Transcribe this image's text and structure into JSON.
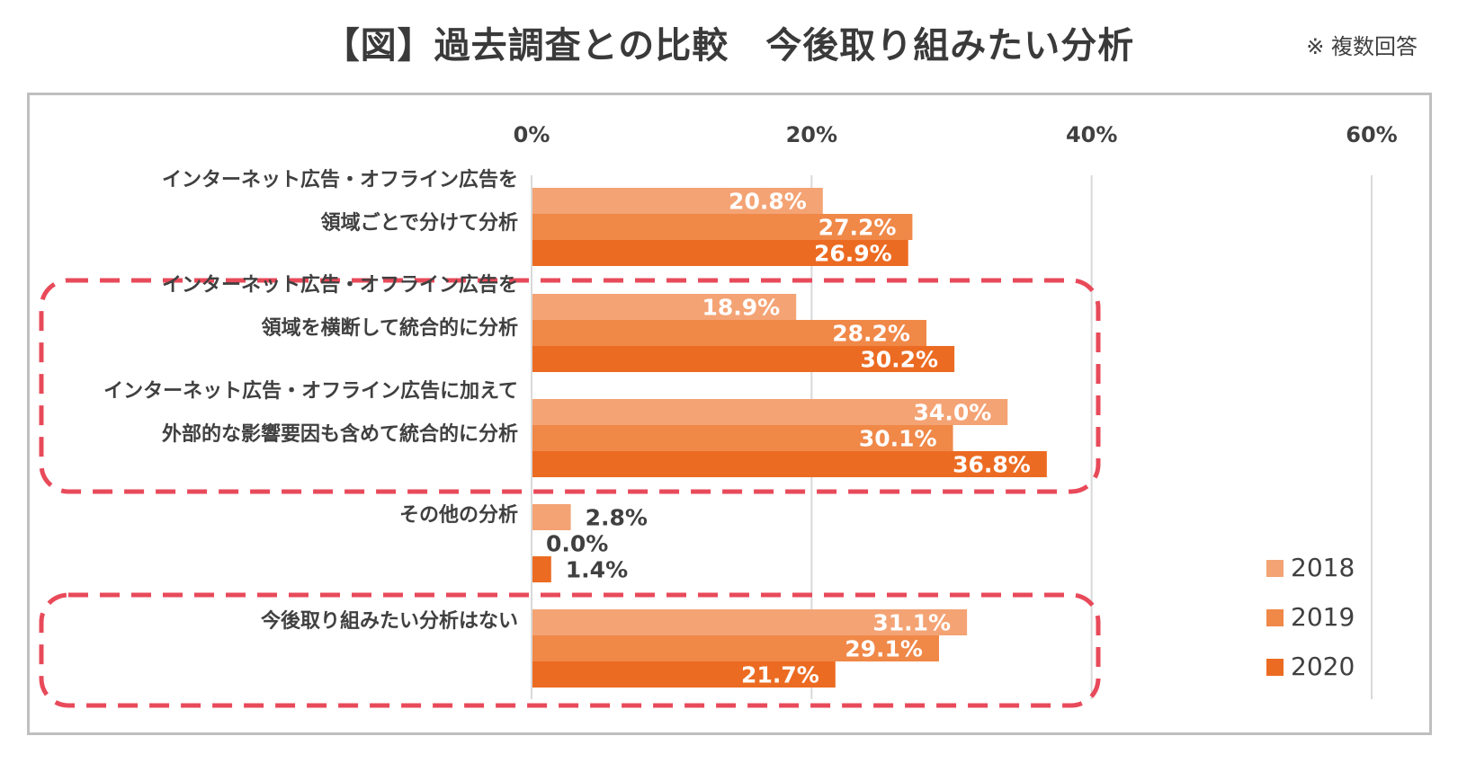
{
  "header": {
    "title": "【図】過去調査との比較　今後取り組みたい分析",
    "note": "※ 複数回答"
  },
  "chart_data": {
    "type": "bar",
    "orientation": "horizontal",
    "title": "【図】過去調査との比較　今後取り組みたい分析",
    "categories": [
      [
        "インターネット広告・オフライン広告を",
        "領域ごとで分けて分析"
      ],
      [
        "インターネット広告・オフライン広告を",
        "領域を横断して統合的に分析"
      ],
      [
        "インターネット広告・オフライン広告に加えて",
        "外部的な影響要因も含めて統合的に分析"
      ],
      [
        "その他の分析"
      ],
      [
        "今後取り組みたい分析はない"
      ]
    ],
    "series": [
      {
        "name": "2018",
        "values": [
          20.8,
          18.9,
          34.0,
          2.8,
          31.1
        ],
        "labels": [
          "20.8%",
          "18.9%",
          "34.0%",
          "2.8%",
          "31.1%"
        ]
      },
      {
        "name": "2019",
        "values": [
          27.2,
          28.2,
          30.1,
          0.0,
          29.1
        ],
        "labels": [
          "27.2%",
          "28.2%",
          "30.1%",
          "0.0%",
          "29.1%"
        ]
      },
      {
        "name": "2020",
        "values": [
          26.9,
          30.2,
          36.8,
          1.4,
          21.7
        ],
        "labels": [
          "26.9%",
          "30.2%",
          "36.8%",
          "1.4%",
          "21.7%"
        ]
      }
    ],
    "xlim": [
      0,
      60
    ],
    "xticks": [
      "0%",
      "20%",
      "40%",
      "60%"
    ],
    "legend": "bottom-right",
    "grid": true,
    "colors": {
      "2018": "#f4a374",
      "2019": "#f08848",
      "2020": "#ec6b22"
    },
    "highlight_groups": [
      [
        1,
        2
      ],
      [
        4
      ]
    ],
    "highlight_color": "#e84a5a"
  }
}
